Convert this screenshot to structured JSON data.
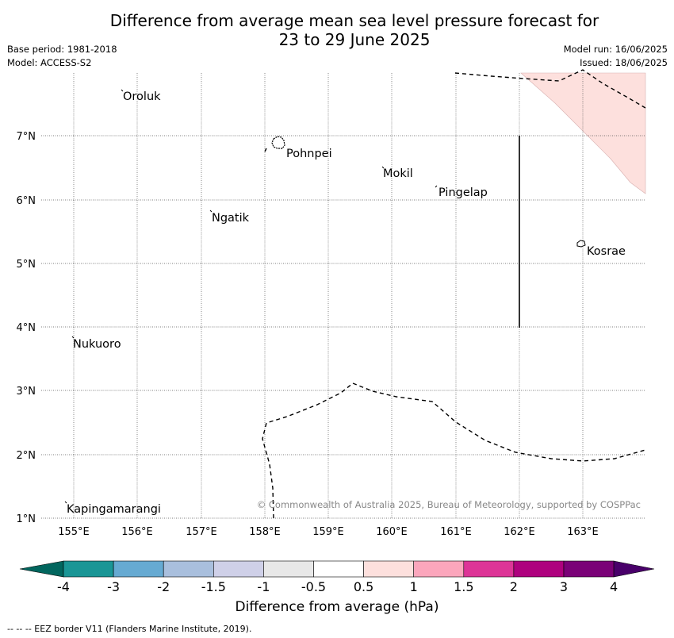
{
  "title": {
    "line1": "Difference from average mean sea level pressure forecast for",
    "line2": "23 to 29 June 2025"
  },
  "meta_left": {
    "base_period": "Base period: 1981-2018",
    "model": "Model: ACCESS-S2"
  },
  "meta_right": {
    "model_run": "Model run: 16/06/2025",
    "issued": "Issued: 18/06/2025"
  },
  "map": {
    "lat_labels": [
      "7°N",
      "6°N",
      "5°N",
      "4°N",
      "3°N",
      "2°N",
      "1°N"
    ],
    "lon_labels": [
      "155°E",
      "156°E",
      "157°E",
      "158°E",
      "159°E",
      "160°E",
      "161°E",
      "162°E",
      "163°E"
    ],
    "places": [
      "Oroluk",
      "Pohnpei",
      "Mokil",
      "Pingelap",
      "Ngatik",
      "Kosrae",
      "Nukuoro",
      "Kapingamarangi"
    ],
    "copyright": "© Commonwealth of Australia 2025, Bureau of Meteorology, supported by COSPPac",
    "shading_color": "#fde0dd"
  },
  "colorbar": {
    "ticks": [
      "-4",
      "-3",
      "-2",
      "-1.5",
      "-1",
      "-0.5",
      "0.5",
      "1",
      "1.5",
      "2",
      "3",
      "4"
    ],
    "colors": [
      "#1a9696",
      "#66aad2",
      "#a9bfdd",
      "#cfd0e8",
      "#e8e8e8",
      "#ffffff",
      "#fde0dd",
      "#fba6bc",
      "#dd3597",
      "#ae017e",
      "#7a0177"
    ],
    "under_color": "#01665e",
    "over_color": "#49006a",
    "label": "Difference from average (hPa)"
  },
  "footer": "--  --  -- EEZ border V11 (Flanders Marine Institute, 2019)."
}
